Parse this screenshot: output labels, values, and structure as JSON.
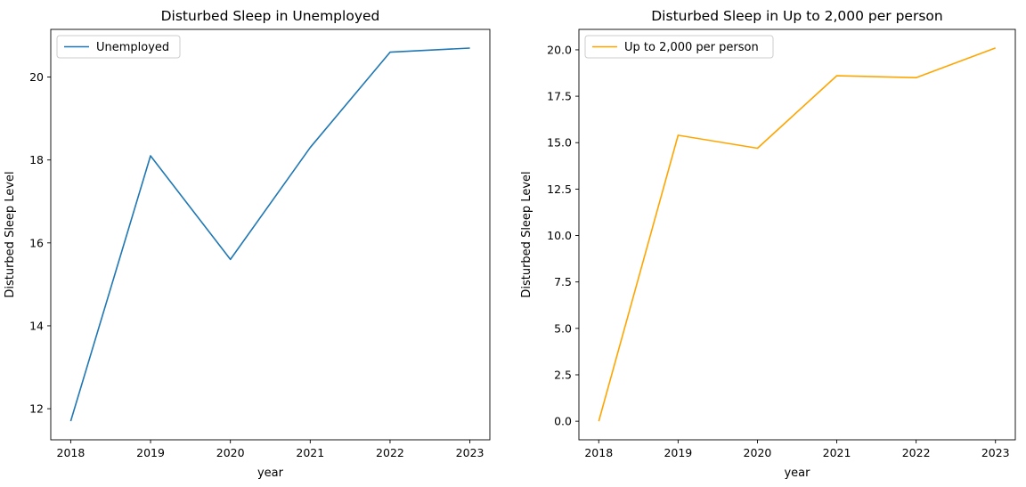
{
  "chart_data": [
    {
      "type": "line",
      "title": "Disturbed Sleep in Unemployed",
      "xlabel": "year",
      "ylabel": "Disturbed Sleep Level",
      "x": [
        2018,
        2019,
        2020,
        2021,
        2022,
        2023
      ],
      "x_tick_labels": [
        "2018",
        "2019",
        "2020",
        "2021",
        "2022",
        "2023"
      ],
      "y_ticks": [
        12,
        14,
        16,
        18,
        20
      ],
      "y_tick_labels": [
        "12",
        "14",
        "16",
        "18",
        "20"
      ],
      "ylim": [
        11.25,
        21.15
      ],
      "legend_position": "upper-left",
      "grid": false,
      "series": [
        {
          "name": "Unemployed",
          "color": "#1f77b4",
          "values": [
            11.7,
            18.1,
            15.6,
            18.3,
            20.6,
            20.7
          ]
        }
      ]
    },
    {
      "type": "line",
      "title": "Disturbed Sleep in Up to 2,000 per person",
      "xlabel": "year",
      "ylabel": "Disturbed Sleep Level",
      "x": [
        2018,
        2019,
        2020,
        2021,
        2022,
        2023
      ],
      "x_tick_labels": [
        "2018",
        "2019",
        "2020",
        "2021",
        "2022",
        "2023"
      ],
      "y_ticks": [
        0,
        2.5,
        5,
        7.5,
        10,
        12.5,
        15,
        17.5,
        20
      ],
      "y_tick_labels": [
        "0.0",
        "2.5",
        "5.0",
        "7.5",
        "10.0",
        "12.5",
        "15.0",
        "17.5",
        "20.0"
      ],
      "ylim": [
        -1.0,
        21.1
      ],
      "legend_position": "upper-left",
      "grid": false,
      "series": [
        {
          "name": "Up to 2,000 per person",
          "color": "#ffa500",
          "values": [
            0.0,
            15.4,
            14.7,
            18.6,
            18.5,
            20.1
          ]
        }
      ]
    }
  ]
}
